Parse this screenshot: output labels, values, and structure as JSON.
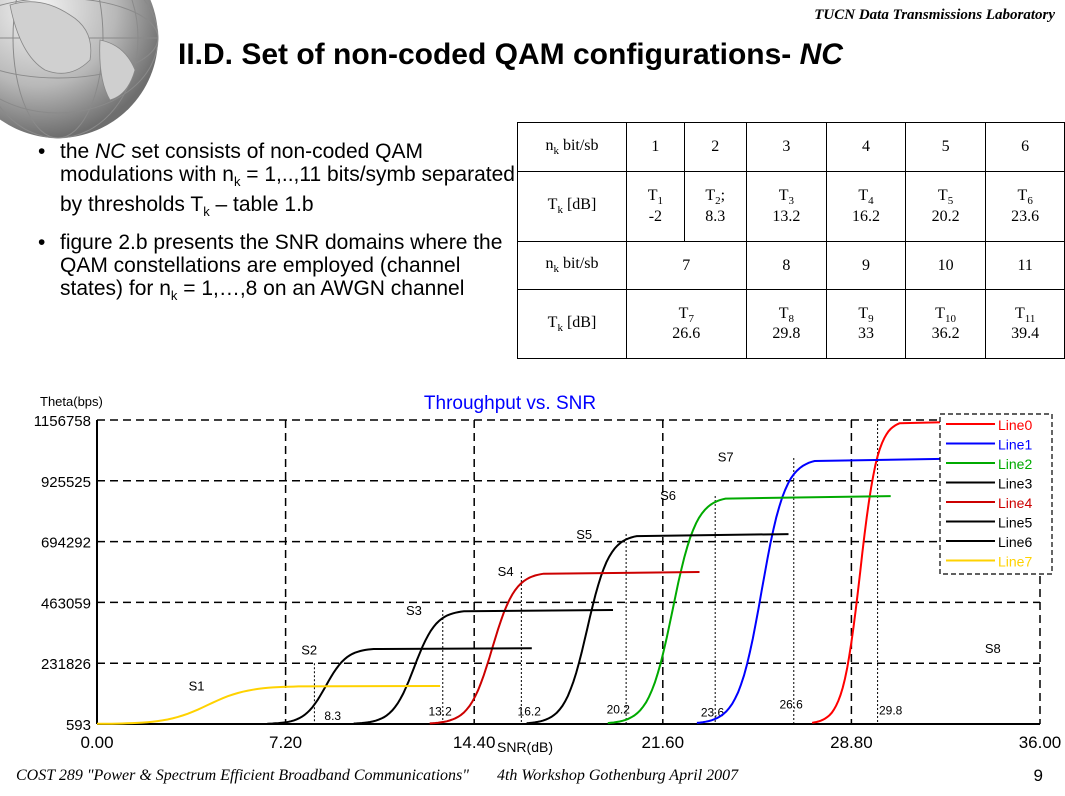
{
  "header": {
    "lab": "TUCN Data Transmissions Laboratory"
  },
  "title": {
    "main": "II.D. Set of non-coded QAM configurations- ",
    "emph": "NC"
  },
  "bullets": [
    "the NC set consists of non-coded QAM modulations with nk = 1,..,11 bits/symb separated by thresholds Tk – table 1.b",
    "figure 2.b presents the SNR domains where the QAM constellations are employed (channel states) for nk = 1,…,8 on an AWGN channel"
  ],
  "table": {
    "row1_label": "n",
    "row1_label_sub": "k",
    "row1_label_rest": " bit/sb",
    "row1": [
      "1",
      "2",
      "3",
      "4",
      "5",
      "6"
    ],
    "row2_label": "T",
    "row2_label_sub": "k",
    "row2_label_rest": "  [dB]",
    "row2": [
      {
        "t": "T",
        "sub": "1",
        "v": "-2"
      },
      {
        "t": "T",
        "sub": "2",
        "v": "8.3",
        "suffix": ";"
      },
      {
        "t": "T",
        "sub": "3",
        "v": "13.2"
      },
      {
        "t": "T",
        "sub": "4",
        "v": "16.2"
      },
      {
        "t": "T",
        "sub": "5",
        "v": "20.2"
      },
      {
        "t": "T",
        "sub": "6",
        "v": "23.6"
      }
    ],
    "row3_label": "n",
    "row3_label_sub": "k",
    "row3_label_rest": " bit/sb",
    "row3": [
      "7",
      "8",
      "9",
      "10",
      "11"
    ],
    "row4_label": "T",
    "row4_label_sub": "k",
    "row4_label_rest": " [dB]",
    "row4": [
      {
        "t": "T",
        "sub": "7",
        "v": "26.6"
      },
      {
        "t": "T",
        "sub": "8",
        "v": "29.8"
      },
      {
        "t": "T",
        "sub": "9",
        "v": "33"
      },
      {
        "t": "T",
        "sub": "10",
        "v": "36.2"
      },
      {
        "t": "T",
        "sub": "11",
        "v": "39.4"
      }
    ]
  },
  "chart_data": {
    "type": "line",
    "title": "Throughput vs. SNR",
    "ylabel": "Theta(bps)",
    "xlabel": "SNR(dB)",
    "xlim": [
      0,
      36
    ],
    "ylim": [
      593,
      1156758
    ],
    "xticks": [
      "0.00",
      "7.20",
      "14.40",
      "21.60",
      "28.80",
      "36.00"
    ],
    "yticks": [
      "593",
      "231826",
      "463059",
      "694292",
      "925525",
      "1156758"
    ],
    "xtick_values": [
      0,
      7.2,
      14.4,
      21.6,
      28.8,
      36
    ],
    "ytick_values": [
      593,
      231826,
      463059,
      694292,
      925525,
      1156758
    ],
    "grid": "dashed",
    "legend_position": "top-right",
    "series": [
      {
        "name": "Line0",
        "color": "#ff0000",
        "level": 1156758,
        "x_start": 27.3,
        "x_mid": 29.6,
        "x_end": 36.0
      },
      {
        "name": "Line1",
        "color": "#0000ff",
        "level": 1012000,
        "x_start": 22.9,
        "x_mid": 26.0,
        "x_end": 34.0
      },
      {
        "name": "Line2",
        "color": "#00aa00",
        "level": 867500,
        "x_start": 19.5,
        "x_mid": 22.6,
        "x_end": 30.3
      },
      {
        "name": "Line3",
        "color": "#000000",
        "level": 723000,
        "x_start": 16.4,
        "x_mid": 19.3,
        "x_end": 26.4
      },
      {
        "name": "Line4",
        "color": "#cc0000",
        "level": 578500,
        "x_start": 12.7,
        "x_mid": 15.7,
        "x_end": 23.0
      },
      {
        "name": "Line5",
        "color": "#000000",
        "level": 434000,
        "x_start": 9.8,
        "x_mid": 12.7,
        "x_end": 19.7
      },
      {
        "name": "Line6",
        "color": "#000000",
        "level": 289000,
        "x_start": 6.5,
        "x_mid": 9.3,
        "x_end": 16.6
      },
      {
        "name": "Line7",
        "color": "#ffd200",
        "level": 145000,
        "x_start": 0.0,
        "x_mid": 5.3,
        "x_end": 13.1
      }
    ],
    "state_labels": [
      {
        "text": "S1",
        "x": 3.8,
        "y": 128000
      },
      {
        "text": "S2",
        "x": 8.1,
        "y": 264000
      },
      {
        "text": "S3",
        "x": 12.1,
        "y": 415000
      },
      {
        "text": "S4",
        "x": 15.6,
        "y": 564000
      },
      {
        "text": "S5",
        "x": 18.6,
        "y": 705000
      },
      {
        "text": "S6",
        "x": 21.8,
        "y": 852000
      },
      {
        "text": "S7",
        "x": 24.0,
        "y": 998000
      },
      {
        "text": "S8",
        "x": 34.2,
        "y": 270000
      }
    ],
    "threshold_lines": [
      {
        "label": "8.3",
        "x": 8.3,
        "y_top": 231826,
        "label_x": 9.0,
        "label_y": 15000
      },
      {
        "label": "13.2",
        "x": 13.2,
        "y_top": 434000,
        "label_x": 13.1,
        "label_y": 33000
      },
      {
        "label": "16.2",
        "x": 16.2,
        "y_top": 578500,
        "label_x": 16.5,
        "label_y": 33000
      },
      {
        "label": "20.2",
        "x": 20.2,
        "y_top": 723000,
        "label_x": 19.9,
        "label_y": 40000
      },
      {
        "label": "23.6",
        "x": 23.6,
        "y_top": 867500,
        "label_x": 23.5,
        "label_y": 30000
      },
      {
        "label": "26.6",
        "x": 26.6,
        "y_top": 1012000,
        "label_x": 26.5,
        "label_y": 60000
      },
      {
        "label": "29.8",
        "x": 29.8,
        "y_top": 1156758,
        "label_x": 30.3,
        "label_y": 36000
      }
    ],
    "axis_color": "#000000",
    "title_color": "#0000ff"
  },
  "footer": {
    "left": "COST 289 \"Power & Spectrum Efficient Broadband Communications\"",
    "right": "4th Workshop Gothenburg April 2007",
    "page": "9"
  }
}
